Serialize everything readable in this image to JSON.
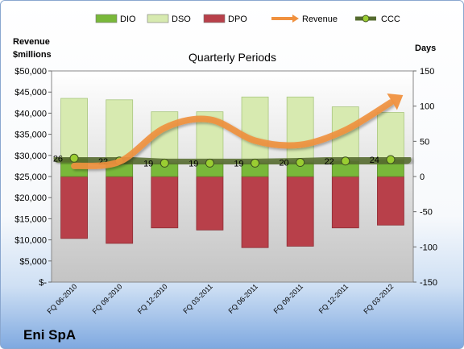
{
  "chart_data": {
    "type": "bar",
    "title": "Quarterly Periods",
    "company": "Eni SpA",
    "left_axis_title": [
      "Revenue",
      "$millions"
    ],
    "right_axis_title": "Days",
    "categories": [
      "FQ 06-2010",
      "FQ 09-2010",
      "FQ 12-2010",
      "FQ 03-2011",
      "FQ 06-2011",
      "FQ 09-2011",
      "FQ 12-2011",
      "FQ 03-2012"
    ],
    "left_ticks": [
      "$50,000",
      "$45,000",
      "$40,000",
      "$35,000",
      "$30,000",
      "$25,000",
      "$20,000",
      "$15,000",
      "$10,000",
      "$5,000",
      "$-"
    ],
    "right_ticks": [
      "150",
      "100",
      "50",
      "0",
      "-50",
      "-100",
      "-150"
    ],
    "left_ylim": [
      0,
      50000
    ],
    "right_ylim": [
      -150,
      150
    ],
    "series": [
      {
        "name": "DIO",
        "type": "stacked-bar",
        "axis": "right",
        "color": "#79b83a",
        "values": [
          26,
          22,
          19,
          19,
          19,
          20,
          22,
          24
        ]
      },
      {
        "name": "DSO",
        "type": "stacked-bar",
        "axis": "right",
        "color": "#d7eab0",
        "values": [
          85,
          87,
          73,
          73,
          94,
          93,
          77,
          67
        ]
      },
      {
        "name": "DPO",
        "type": "negative-bar",
        "axis": "right",
        "color": "#b8404a",
        "values": [
          -88,
          -95,
          -73,
          -76,
          -101,
          -99,
          -73,
          -69
        ]
      },
      {
        "name": "Revenue",
        "type": "line",
        "axis": "left",
        "color": "#f0913f",
        "values": [
          27500,
          28500,
          36500,
          38500,
          33500,
          32500,
          36000,
          42500
        ]
      },
      {
        "name": "CCC",
        "type": "line",
        "axis": "right",
        "color": "#556b2f",
        "values": [
          26,
          22,
          19,
          19,
          19,
          20,
          22,
          24
        ],
        "labels": [
          "26",
          "22",
          "19",
          "19",
          "19",
          "20",
          "22",
          "24"
        ]
      }
    ],
    "legend_position": "top"
  }
}
